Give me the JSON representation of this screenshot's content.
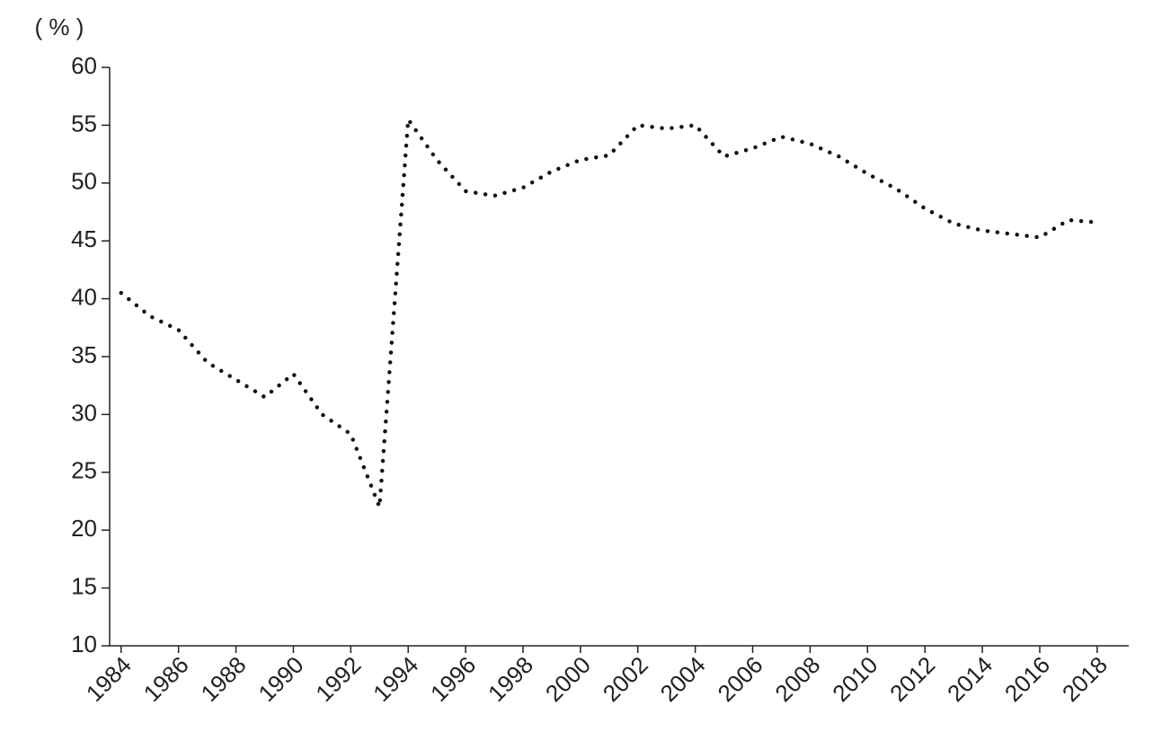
{
  "chart_data": {
    "type": "line",
    "ylabel": "( % )",
    "x": [
      1984,
      1985,
      1986,
      1987,
      1988,
      1989,
      1990,
      1991,
      1992,
      1993,
      1994,
      1995,
      1996,
      1997,
      1998,
      1999,
      2000,
      2001,
      2002,
      2003,
      2004,
      2005,
      2006,
      2007,
      2008,
      2009,
      2010,
      2011,
      2012,
      2013,
      2014,
      2015,
      2016,
      2017,
      2018
    ],
    "series": [
      {
        "color": "#111111",
        "values": [
          40.5,
          38.5,
          37.3,
          34.5,
          33,
          31.5,
          33.5,
          30,
          28.3,
          22,
          55.5,
          52,
          49.3,
          48.9,
          49.6,
          51,
          52,
          52.4,
          55,
          54.7,
          55,
          52.3,
          53,
          54,
          53.4,
          52.3,
          50.8,
          49.5,
          47.8,
          46.5,
          45.9,
          45.6,
          45.3,
          46.8,
          46.6
        ]
      }
    ],
    "xlim": [
      1983.6,
      2019.1
    ],
    "xticks": [
      1984,
      1986,
      1988,
      1990,
      1992,
      1994,
      1996,
      1998,
      2000,
      2002,
      2004,
      2006,
      2008,
      2010,
      2012,
      2014,
      2016,
      2018
    ],
    "ylim": [
      10,
      60
    ],
    "yticks": [
      10,
      15,
      20,
      25,
      30,
      35,
      40,
      45,
      50,
      55,
      60
    ],
    "grid": false
  }
}
